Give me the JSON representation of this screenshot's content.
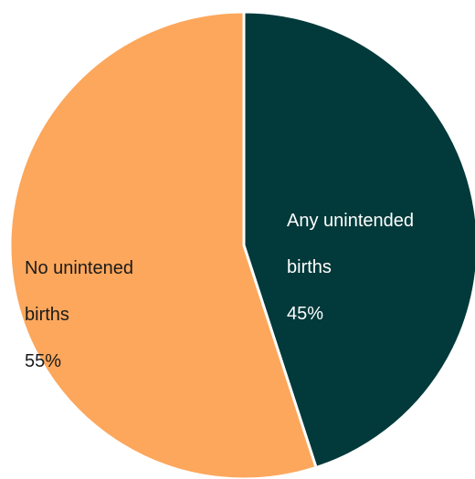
{
  "chart_data": {
    "type": "pie",
    "title": "",
    "start": "top",
    "direction": "clockwise",
    "slices": [
      {
        "name": "Any unintended births",
        "value": 45,
        "percent_label": "45%",
        "color": "#02393a",
        "text_color": "#ffffff"
      },
      {
        "name": "No unintened births",
        "value": 55,
        "percent_label": "55%",
        "color": "#fca75c",
        "text_color": "#1a1a1a"
      }
    ],
    "labels": [
      {
        "line1": "Any unintended",
        "line2": "births",
        "pct": "45%"
      },
      {
        "line1": "No unintened",
        "line2": "births",
        "pct": "55%"
      }
    ]
  }
}
